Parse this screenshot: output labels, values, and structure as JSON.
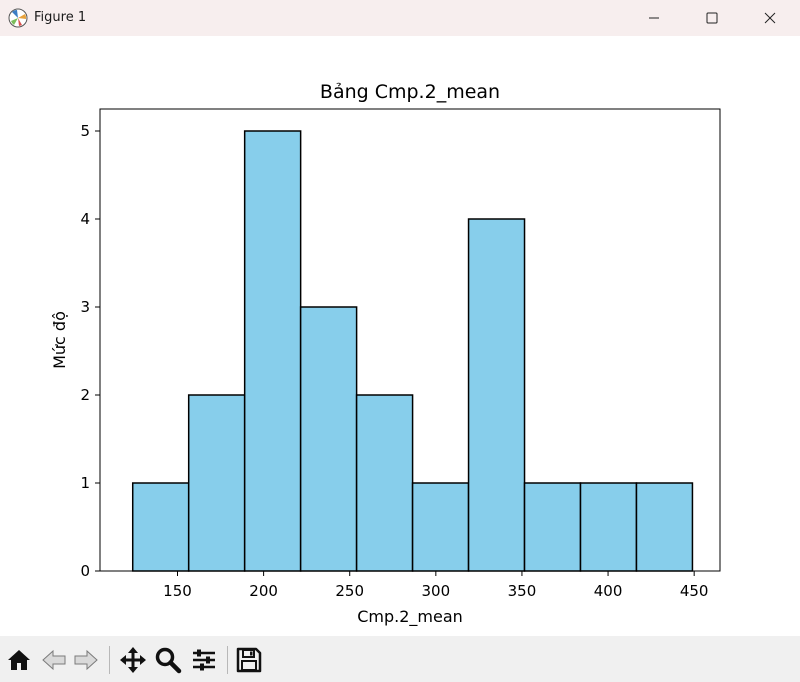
{
  "window": {
    "title": "Figure 1",
    "controls": [
      "minimize",
      "maximize",
      "close"
    ]
  },
  "toolbar": {
    "tools": [
      "home-icon",
      "back-icon",
      "forward-icon",
      "pan-icon",
      "zoom-icon",
      "configure-subplots-icon",
      "save-icon"
    ]
  },
  "colors": {
    "bar_fill": "#87ceeb",
    "bar_edge": "#000000"
  },
  "chart_data": {
    "type": "bar",
    "title": "Bảng Cmp.2_mean",
    "xlabel": "Cmp.2_mean",
    "ylabel": "Mức độ",
    "xlim": [
      105,
      465
    ],
    "ylim": [
      0,
      5.25
    ],
    "xticks": [
      150,
      200,
      250,
      300,
      350,
      400,
      450
    ],
    "yticks": [
      0,
      1,
      2,
      3,
      4,
      5
    ],
    "bins": [
      {
        "start": 124,
        "end": 156.5,
        "count": 1
      },
      {
        "start": 156.5,
        "end": 189,
        "count": 2
      },
      {
        "start": 189,
        "end": 221.5,
        "count": 5
      },
      {
        "start": 221.5,
        "end": 254,
        "count": 3
      },
      {
        "start": 254,
        "end": 286.5,
        "count": 2
      },
      {
        "start": 286.5,
        "end": 319,
        "count": 1
      },
      {
        "start": 319,
        "end": 351.5,
        "count": 4
      },
      {
        "start": 351.5,
        "end": 384,
        "count": 1
      },
      {
        "start": 384,
        "end": 416.5,
        "count": 1
      },
      {
        "start": 416.5,
        "end": 449,
        "count": 1
      }
    ]
  }
}
